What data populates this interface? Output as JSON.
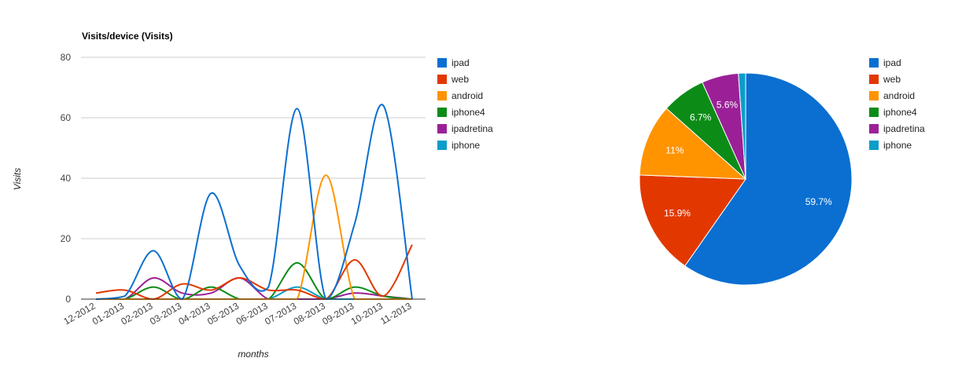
{
  "colors": {
    "ipad": "#0a6fd1",
    "web": "#e23800",
    "android": "#ff9400",
    "iphone4": "#0c8c17",
    "ipadretina": "#9b2097",
    "iphone": "#0c9dc9",
    "gridline": "#cccccc",
    "baseline": "#333333",
    "axis_text": "#444444"
  },
  "chart_data": [
    {
      "type": "line",
      "title": "Visits/device (Visits)",
      "xlabel": "months",
      "ylabel": "Visits",
      "ylim": [
        0,
        80
      ],
      "yticks": [
        0,
        20,
        40,
        60,
        80
      ],
      "grid": true,
      "curve": "smooth",
      "legend_position": "right",
      "categories": [
        "12-2012",
        "01-2013",
        "02-2013",
        "03-2013",
        "04-2013",
        "05-2013",
        "06-2013",
        "07-2013",
        "08-2013",
        "09-2013",
        "10-2013",
        "11-2013"
      ],
      "series": [
        {
          "name": "ipad",
          "values": [
            0,
            1,
            16,
            0,
            35,
            11,
            4,
            63,
            0,
            25,
            64,
            0
          ]
        },
        {
          "name": "web",
          "values": [
            2,
            3,
            0,
            5,
            3,
            7,
            3,
            3,
            0,
            13,
            1,
            18
          ]
        },
        {
          "name": "android",
          "values": [
            0,
            0,
            0,
            0,
            0,
            0,
            0,
            0,
            41,
            0,
            0,
            0
          ]
        },
        {
          "name": "iphone4",
          "values": [
            0,
            0,
            4,
            0,
            4,
            0,
            0,
            12,
            0,
            4,
            1,
            0
          ]
        },
        {
          "name": "ipadretina",
          "values": [
            0,
            0,
            7,
            2,
            2,
            7,
            0,
            0,
            0,
            2,
            1,
            0
          ]
        },
        {
          "name": "iphone",
          "values": [
            0,
            0,
            0,
            0,
            0,
            0,
            0,
            4,
            0,
            0,
            0,
            0
          ]
        }
      ]
    },
    {
      "type": "pie",
      "title": "",
      "legend_position": "right",
      "categories": [
        "ipad",
        "web",
        "android",
        "iphone4",
        "ipadretina",
        "iphone"
      ],
      "values": [
        59.7,
        15.9,
        11,
        6.7,
        5.6,
        1.1
      ],
      "labels": [
        "59.7%",
        "15.9%",
        "11%",
        "6.7%",
        "5.6%",
        ""
      ]
    }
  ],
  "line_legend": [
    {
      "label": "ipad",
      "key": "ipad"
    },
    {
      "label": "web",
      "key": "web"
    },
    {
      "label": "android",
      "key": "android"
    },
    {
      "label": "iphone4",
      "key": "iphone4"
    },
    {
      "label": "ipadretina",
      "key": "ipadretina"
    },
    {
      "label": "iphone",
      "key": "iphone"
    }
  ],
  "pie_legend": [
    {
      "label": "ipad",
      "key": "ipad"
    },
    {
      "label": "web",
      "key": "web"
    },
    {
      "label": "android",
      "key": "android"
    },
    {
      "label": "iphone4",
      "key": "iphone4"
    },
    {
      "label": "ipadretina",
      "key": "ipadretina"
    },
    {
      "label": "iphone",
      "key": "iphone"
    }
  ]
}
